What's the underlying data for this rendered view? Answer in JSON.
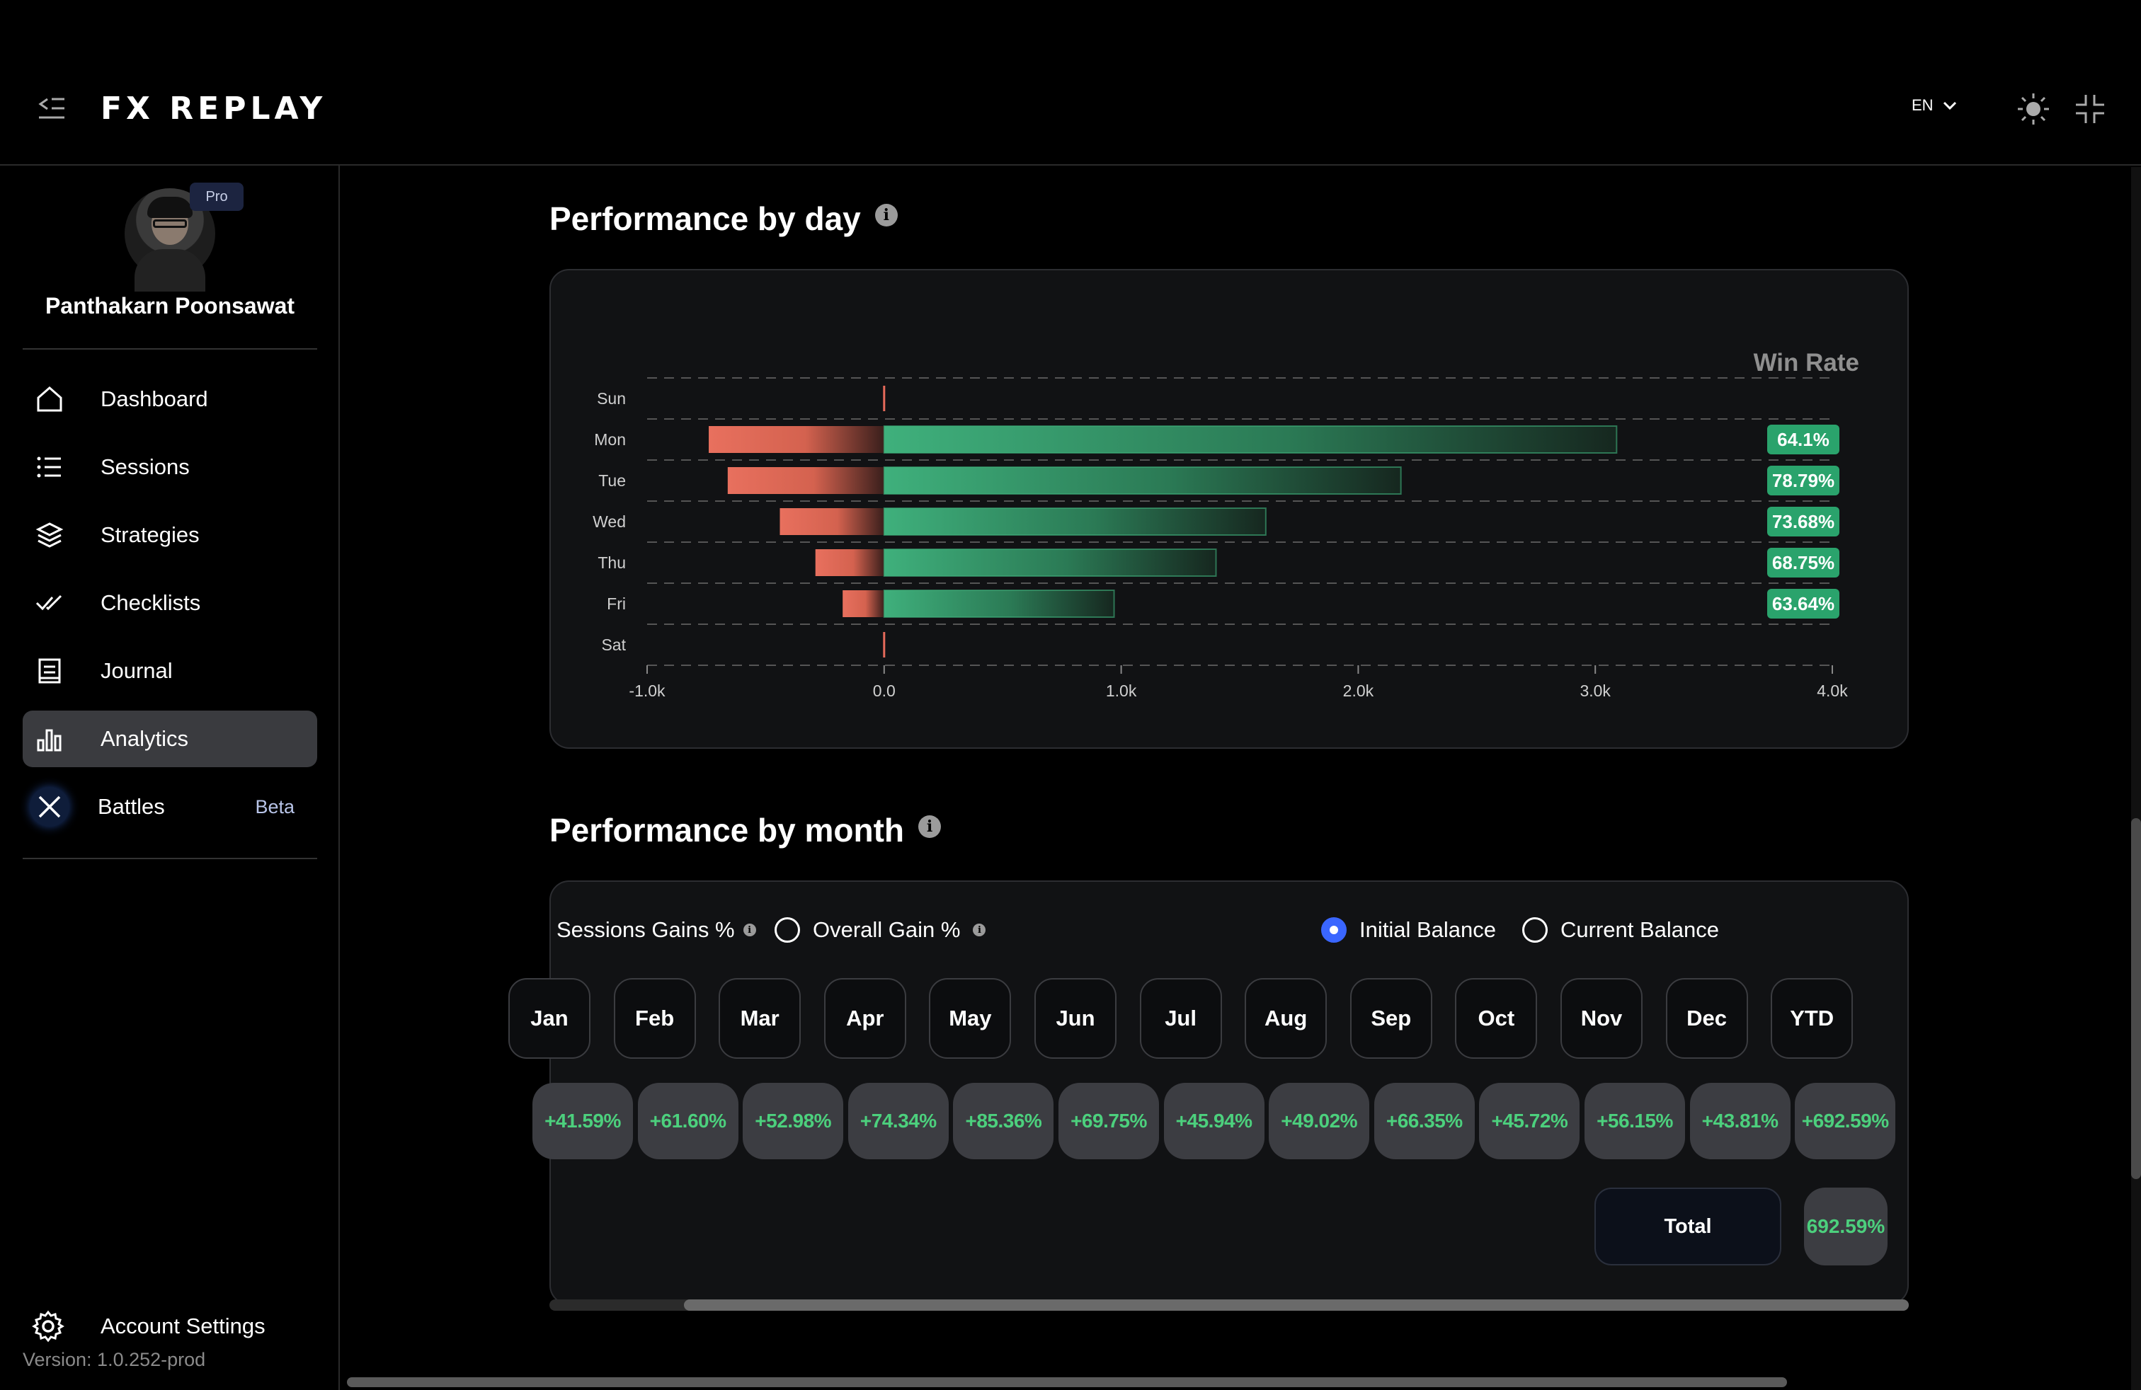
{
  "app": {
    "logo_text": "FX REPLAY",
    "language": "EN"
  },
  "user": {
    "name": "Panthakarn Poonsawat",
    "badge": "Pro"
  },
  "nav": [
    {
      "label": "Dashboard",
      "icon": "home-icon"
    },
    {
      "label": "Sessions",
      "icon": "list-icon"
    },
    {
      "label": "Strategies",
      "icon": "layers-icon"
    },
    {
      "label": "Checklists",
      "icon": "double-check-icon"
    },
    {
      "label": "Journal",
      "icon": "journal-icon"
    },
    {
      "label": "Analytics",
      "icon": "bar-chart-icon",
      "active": true
    },
    {
      "label": "Battles",
      "icon": "swords-icon",
      "badge": "Beta"
    }
  ],
  "footer": {
    "account_settings": "Account Settings",
    "version": "Version: 1.0.252-prod"
  },
  "performance_by_day": {
    "title": "Performance by day",
    "win_rate_label": "Win Rate",
    "chart_data": {
      "type": "bar",
      "orientation": "horizontal",
      "categories": [
        "Sun",
        "Mon",
        "Tue",
        "Wed",
        "Thu",
        "Fri",
        "Sat"
      ],
      "series": [
        {
          "values": [
            0,
            -740,
            -660,
            -440,
            -290,
            -175,
            0
          ],
          "color": "#e56a5a"
        },
        {
          "values": [
            0,
            3090,
            2180,
            1610,
            1400,
            970,
            0
          ],
          "color": "#3aa876"
        }
      ],
      "win_rates": [
        "",
        "64.1%",
        "78.79%",
        "73.68%",
        "68.75%",
        "63.64%",
        ""
      ],
      "xlim": [
        -1000,
        4000
      ],
      "x_ticks": [
        "-1.0k",
        "0.0",
        "1.0k",
        "2.0k",
        "3.0k",
        "4.0k"
      ],
      "grid": true
    }
  },
  "performance_by_month": {
    "title": "Performance by month",
    "options": {
      "sessions_gains": "Sessions Gains %",
      "overall_gain": "Overall Gain %",
      "initial_balance": "Initial Balance",
      "current_balance": "Current Balance",
      "selected_balance": "Initial Balance"
    },
    "months": [
      {
        "label": "Jan",
        "gain": "+41.59%"
      },
      {
        "label": "Feb",
        "gain": "+61.60%"
      },
      {
        "label": "Mar",
        "gain": "+52.98%"
      },
      {
        "label": "Apr",
        "gain": "+74.34%"
      },
      {
        "label": "May",
        "gain": "+85.36%"
      },
      {
        "label": "Jun",
        "gain": "+69.75%"
      },
      {
        "label": "Jul",
        "gain": "+45.94%"
      },
      {
        "label": "Aug",
        "gain": "+49.02%"
      },
      {
        "label": "Sep",
        "gain": "+66.35%"
      },
      {
        "label": "Oct",
        "gain": "+45.72%"
      },
      {
        "label": "Nov",
        "gain": "+56.15%"
      },
      {
        "label": "Dec",
        "gain": "+43.81%"
      },
      {
        "label": "YTD",
        "gain": "+692.59%"
      }
    ],
    "total_label": "Total",
    "total_value": "692.59%"
  }
}
